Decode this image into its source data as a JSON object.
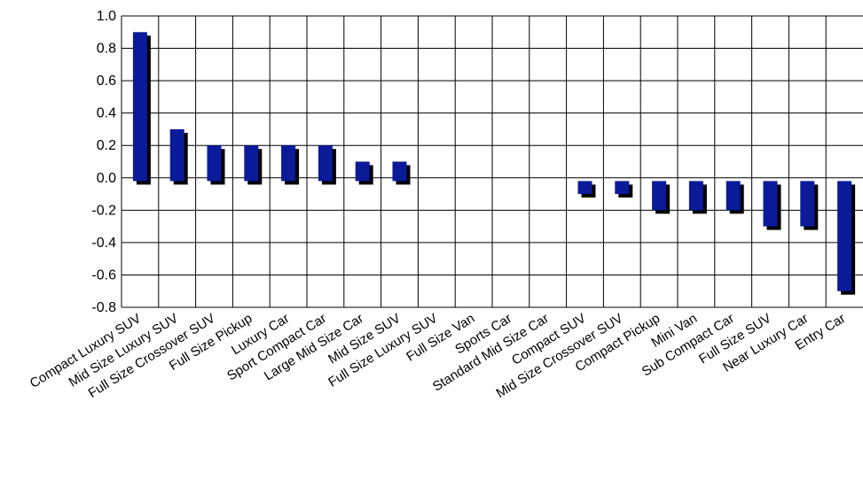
{
  "chart_data": {
    "type": "bar",
    "title": "",
    "xlabel": "",
    "ylabel": "",
    "ylim": [
      -0.8,
      1.0
    ],
    "yticks": [
      "1.0",
      "0.8",
      "0.6",
      "0.4",
      "0.2",
      "0.0",
      "-0.2",
      "-0.4",
      "-0.6",
      "-0.8"
    ],
    "grid": true,
    "legend": "none",
    "bar_color": "#0a1a99",
    "shadow_color": "#000000",
    "categories": [
      "Compact Luxury SUV",
      "Mid Size Luxury SUV",
      "Full Size Crossover SUV",
      "Full Size Pickup",
      "Luxury Car",
      "Sport Compact Car",
      "Large Mid Size Car",
      "Mid Size SUV",
      "Full Size Luxury SUV",
      "Full Size Van",
      "Sports Car",
      "Standard Mid Size Car",
      "Compact SUV",
      "Mid Size Crossover SUV",
      "Compact Pickup",
      "Mini Van",
      "Sub Compact Car",
      "Full Size SUV",
      "Near Luxury Car",
      "Entry Car"
    ],
    "values": [
      0.9,
      0.3,
      0.2,
      0.2,
      0.2,
      0.2,
      0.1,
      0.1,
      0.0,
      0.0,
      0.0,
      0.0,
      -0.1,
      -0.1,
      -0.2,
      -0.2,
      -0.2,
      -0.3,
      -0.3,
      -0.7
    ]
  }
}
